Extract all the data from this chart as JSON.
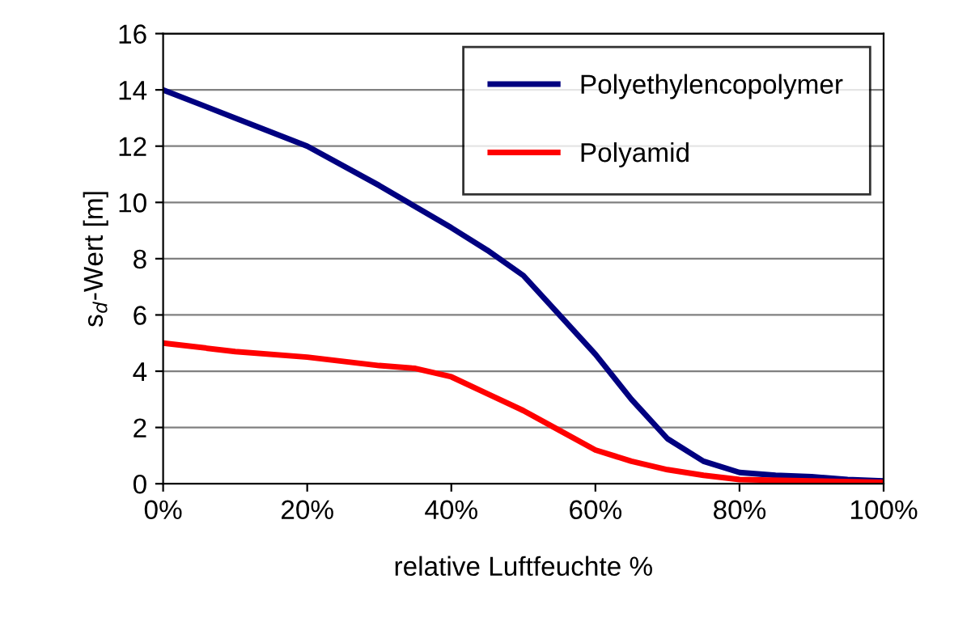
{
  "chart_data": {
    "type": "line",
    "xlabel": "relative Luftfeuchte %",
    "ylabel": "s$_{d}$-Wert [m]",
    "series": [
      {
        "name": "Polyethylencopolymer",
        "color": "#000080",
        "x": [
          0,
          10,
          20,
          30,
          40,
          45,
          50,
          55,
          60,
          65,
          70,
          75,
          80,
          85,
          90,
          95,
          100
        ],
        "values": [
          14,
          13,
          12,
          10.6,
          9.1,
          8.3,
          7.4,
          6,
          4.6,
          3,
          1.6,
          0.8,
          0.4,
          0.3,
          0.25,
          0.15,
          0.1
        ]
      },
      {
        "name": "Polyamid",
        "color": "#ff0000",
        "x": [
          0,
          10,
          20,
          30,
          35,
          40,
          45,
          50,
          55,
          60,
          65,
          70,
          75,
          80,
          90,
          100
        ],
        "values": [
          5,
          4.7,
          4.5,
          4.2,
          4.1,
          3.8,
          3.2,
          2.6,
          1.9,
          1.2,
          0.8,
          0.5,
          0.3,
          0.15,
          0.1,
          0.05
        ]
      }
    ],
    "xlim": [
      0,
      100
    ],
    "ylim": [
      0,
      16
    ],
    "xticks": [
      {
        "value": 0,
        "label": "0%"
      },
      {
        "value": 20,
        "label": "20%"
      },
      {
        "value": 40,
        "label": "40%"
      },
      {
        "value": 60,
        "label": "60%"
      },
      {
        "value": 80,
        "label": "80%"
      },
      {
        "value": 100,
        "label": "100%"
      }
    ],
    "yticks": [
      0,
      2,
      4,
      6,
      8,
      10,
      12,
      14,
      16
    ],
    "grid": "y",
    "legend": "top right",
    "marker": "none",
    "line_style": "solid"
  }
}
